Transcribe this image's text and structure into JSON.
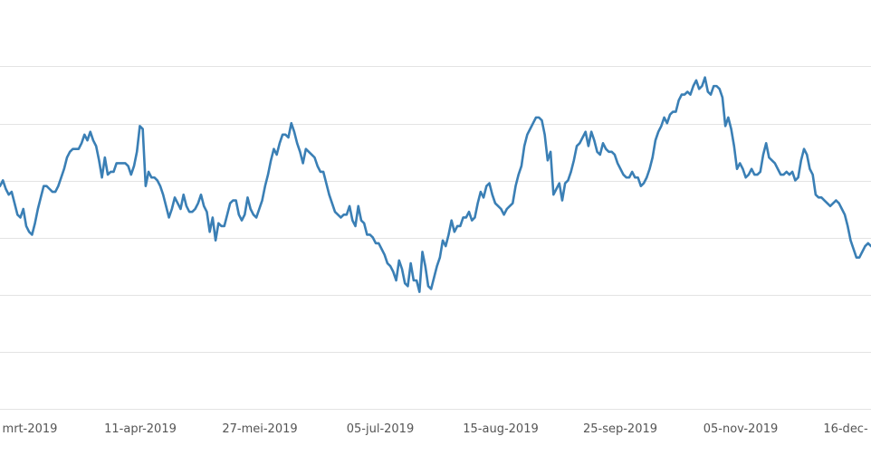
{
  "chart_data": {
    "type": "line",
    "title": "",
    "xlabel": "",
    "ylabel": "",
    "grid": "horizontal",
    "legend": "none",
    "x_ticks": [
      "mrt-2019",
      "11-apr-2019",
      "27-mei-2019",
      "05-jul-2019",
      "15-aug-2019",
      "25-sep-2019",
      "05-nov-2019",
      "16-dec-"
    ],
    "series": [
      {
        "color": "#3a7fb5",
        "values": [
          0.58,
          0.6,
          0.57,
          0.55,
          0.56,
          0.52,
          0.48,
          0.47,
          0.5,
          0.44,
          0.42,
          0.41,
          0.45,
          0.5,
          0.54,
          0.58,
          0.58,
          0.57,
          0.56,
          0.56,
          0.58,
          0.61,
          0.64,
          0.68,
          0.7,
          0.71,
          0.71,
          0.71,
          0.73,
          0.76,
          0.74,
          0.77,
          0.74,
          0.72,
          0.67,
          0.61,
          0.68,
          0.62,
          0.63,
          0.63,
          0.66,
          0.66,
          0.66,
          0.66,
          0.65,
          0.62,
          0.65,
          0.7,
          0.79,
          0.78,
          0.58,
          0.63,
          0.61,
          0.61,
          0.6,
          0.58,
          0.55,
          0.51,
          0.47,
          0.5,
          0.54,
          0.52,
          0.5,
          0.55,
          0.51,
          0.49,
          0.49,
          0.5,
          0.52,
          0.55,
          0.51,
          0.49,
          0.42,
          0.47,
          0.39,
          0.45,
          0.44,
          0.44,
          0.48,
          0.52,
          0.53,
          0.53,
          0.48,
          0.46,
          0.48,
          0.54,
          0.5,
          0.48,
          0.47,
          0.5,
          0.53,
          0.58,
          0.62,
          0.67,
          0.71,
          0.69,
          0.73,
          0.76,
          0.76,
          0.75,
          0.8,
          0.77,
          0.73,
          0.7,
          0.66,
          0.71,
          0.7,
          0.69,
          0.68,
          0.65,
          0.63,
          0.63,
          0.59,
          0.55,
          0.52,
          0.49,
          0.48,
          0.47,
          0.48,
          0.48,
          0.51,
          0.46,
          0.44,
          0.51,
          0.46,
          0.45,
          0.41,
          0.41,
          0.4,
          0.38,
          0.38,
          0.36,
          0.34,
          0.31,
          0.3,
          0.28,
          0.25,
          0.32,
          0.29,
          0.24,
          0.23,
          0.31,
          0.25,
          0.25,
          0.21,
          0.35,
          0.3,
          0.23,
          0.22,
          0.26,
          0.3,
          0.33,
          0.39,
          0.37,
          0.41,
          0.46,
          0.42,
          0.44,
          0.44,
          0.47,
          0.47,
          0.49,
          0.46,
          0.47,
          0.52,
          0.56,
          0.54,
          0.58,
          0.59,
          0.55,
          0.52,
          0.51,
          0.5,
          0.48,
          0.5,
          0.51,
          0.52,
          0.58,
          0.62,
          0.65,
          0.72,
          0.76,
          0.78,
          0.8,
          0.82,
          0.82,
          0.81,
          0.76,
          0.67,
          0.7,
          0.55,
          0.57,
          0.59,
          0.53,
          0.59,
          0.6,
          0.63,
          0.67,
          0.72,
          0.73,
          0.75,
          0.77,
          0.72,
          0.77,
          0.74,
          0.7,
          0.69,
          0.73,
          0.71,
          0.7,
          0.7,
          0.69,
          0.66,
          0.64,
          0.62,
          0.61,
          0.61,
          0.63,
          0.61,
          0.61,
          0.58,
          0.59,
          0.61,
          0.64,
          0.68,
          0.74,
          0.77,
          0.79,
          0.82,
          0.8,
          0.83,
          0.84,
          0.84,
          0.88,
          0.9,
          0.9,
          0.91,
          0.9,
          0.93,
          0.95,
          0.92,
          0.93,
          0.96,
          0.91,
          0.9,
          0.93,
          0.93,
          0.92,
          0.89,
          0.79,
          0.82,
          0.78,
          0.72,
          0.64,
          0.66,
          0.64,
          0.61,
          0.62,
          0.64,
          0.62,
          0.62,
          0.63,
          0.69,
          0.73,
          0.68,
          0.67,
          0.66,
          0.64,
          0.62,
          0.62,
          0.63,
          0.62,
          0.63,
          0.6,
          0.61,
          0.67,
          0.71,
          0.69,
          0.64,
          0.62,
          0.55,
          0.54,
          0.54,
          0.53,
          0.52,
          0.51,
          0.52,
          0.53,
          0.52,
          0.5,
          0.48,
          0.44,
          0.39,
          0.36,
          0.33,
          0.33,
          0.35,
          0.37,
          0.38,
          0.37
        ]
      }
    ]
  }
}
